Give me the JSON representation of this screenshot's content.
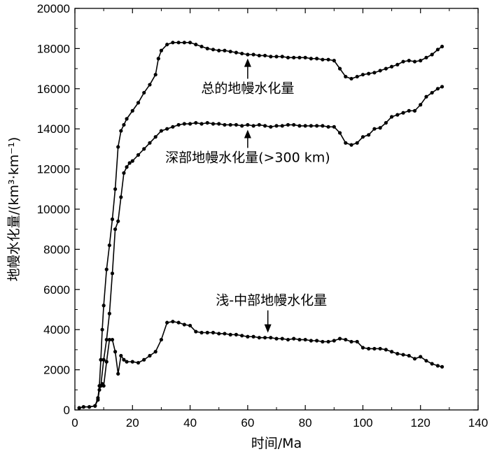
{
  "chart_data": {
    "type": "line",
    "xlabel": "时间/Ma",
    "ylabel": "地幔水化量/(km³·km⁻¹)",
    "xlim": [
      0,
      140
    ],
    "ylim": [
      0,
      20000
    ],
    "xticks": [
      0,
      20,
      40,
      60,
      80,
      100,
      120,
      140
    ],
    "yticks": [
      0,
      2000,
      4000,
      6000,
      8000,
      10000,
      12000,
      14000,
      16000,
      18000,
      20000
    ],
    "grid": false,
    "legend": "none",
    "series": [
      {
        "key": "total",
        "color": "#000000",
        "x": [
          1.5,
          3,
          5,
          7,
          8,
          8.5,
          9,
          9.5,
          10,
          11,
          12,
          13,
          14,
          15,
          16,
          17,
          18,
          20,
          22,
          24,
          26,
          28,
          29,
          30,
          32,
          34,
          36,
          38,
          40,
          42,
          44,
          46,
          48,
          50,
          52,
          54,
          56,
          58,
          60,
          62,
          64,
          66,
          68,
          70,
          72,
          74,
          76,
          78,
          80,
          82,
          84,
          86,
          88,
          90,
          92,
          94,
          96,
          98,
          100,
          102,
          104,
          106,
          108,
          110,
          112,
          114,
          116,
          118,
          120,
          122,
          124,
          126,
          127.5
        ],
        "y": [
          100,
          150,
          150,
          200,
          600,
          1200,
          2500,
          4000,
          5200,
          7000,
          8200,
          9500,
          11000,
          13100,
          13900,
          14200,
          14500,
          14900,
          15300,
          15800,
          16200,
          16700,
          17500,
          17900,
          18200,
          18300,
          18300,
          18300,
          18300,
          18200,
          18100,
          18000,
          17950,
          17900,
          17900,
          17850,
          17800,
          17750,
          17700,
          17700,
          17650,
          17650,
          17600,
          17600,
          17600,
          17550,
          17550,
          17550,
          17550,
          17500,
          17500,
          17450,
          17450,
          17400,
          17000,
          16600,
          16500,
          16600,
          16700,
          16750,
          16800,
          16900,
          17000,
          17100,
          17200,
          17350,
          17400,
          17350,
          17400,
          17550,
          17700,
          17950,
          18100
        ]
      },
      {
        "key": "deep",
        "color": "#000000",
        "x": [
          9,
          10,
          11,
          12,
          13,
          14,
          15,
          16,
          17,
          18,
          19,
          20,
          22,
          24,
          26,
          28,
          30,
          32,
          34,
          36,
          38,
          40,
          42,
          44,
          46,
          48,
          50,
          52,
          54,
          56,
          58,
          60,
          62,
          64,
          66,
          68,
          70,
          72,
          74,
          76,
          78,
          80,
          82,
          84,
          86,
          88,
          90,
          92,
          94,
          96,
          98,
          100,
          102,
          104,
          106,
          108,
          110,
          112,
          114,
          116,
          118,
          120,
          122,
          124,
          126,
          127.5
        ],
        "y": [
          1200,
          2500,
          3500,
          4800,
          6800,
          9000,
          9400,
          10600,
          11800,
          12100,
          12300,
          12400,
          12700,
          13000,
          13300,
          13600,
          13900,
          14000,
          14100,
          14200,
          14250,
          14250,
          14300,
          14250,
          14300,
          14250,
          14250,
          14200,
          14200,
          14200,
          14150,
          14200,
          14150,
          14200,
          14150,
          14100,
          14150,
          14150,
          14200,
          14200,
          14150,
          14150,
          14150,
          14150,
          14150,
          14100,
          14100,
          13800,
          13300,
          13200,
          13300,
          13600,
          13700,
          14000,
          14050,
          14300,
          14600,
          14700,
          14800,
          14900,
          14900,
          15200,
          15600,
          15800,
          16000,
          16100
        ]
      },
      {
        "key": "shallow",
        "color": "#000000",
        "x": [
          1.5,
          3,
          5,
          7,
          8,
          8.5,
          9,
          9.5,
          10,
          11,
          12,
          13,
          14,
          15,
          16,
          17,
          18,
          20,
          22,
          24,
          26,
          28,
          30,
          32,
          34,
          36,
          38,
          40,
          42,
          44,
          46,
          48,
          50,
          52,
          54,
          56,
          58,
          60,
          62,
          64,
          66,
          68,
          70,
          72,
          74,
          76,
          78,
          80,
          82,
          84,
          86,
          88,
          90,
          92,
          94,
          96,
          98,
          100,
          102,
          104,
          106,
          108,
          110,
          112,
          114,
          116,
          118,
          120,
          122,
          124,
          126,
          127.5
        ],
        "y": [
          100,
          150,
          150,
          200,
          500,
          1000,
          1200,
          1300,
          1200,
          2400,
          3500,
          3500,
          2900,
          1800,
          2700,
          2500,
          2400,
          2400,
          2350,
          2500,
          2700,
          2900,
          3500,
          4350,
          4400,
          4350,
          4250,
          4200,
          3900,
          3850,
          3850,
          3850,
          3800,
          3800,
          3750,
          3750,
          3700,
          3650,
          3650,
          3600,
          3600,
          3600,
          3550,
          3550,
          3500,
          3550,
          3500,
          3500,
          3450,
          3450,
          3400,
          3400,
          3450,
          3550,
          3500,
          3400,
          3400,
          3100,
          3050,
          3050,
          3050,
          3000,
          2900,
          2800,
          2750,
          2700,
          2550,
          2650,
          2450,
          2300,
          2200,
          2150
        ]
      }
    ],
    "annotations": [
      {
        "key": "total",
        "text": "总的地幔水化量",
        "arrow_to": [
          60,
          17750
        ]
      },
      {
        "key": "deep",
        "text": "深部地幔水化量(>300 km)",
        "arrow_to": [
          60,
          14200
        ]
      },
      {
        "key": "shallow",
        "text": "浅-中部地幔水化量",
        "arrow_to": [
          67,
          3600
        ]
      }
    ]
  }
}
